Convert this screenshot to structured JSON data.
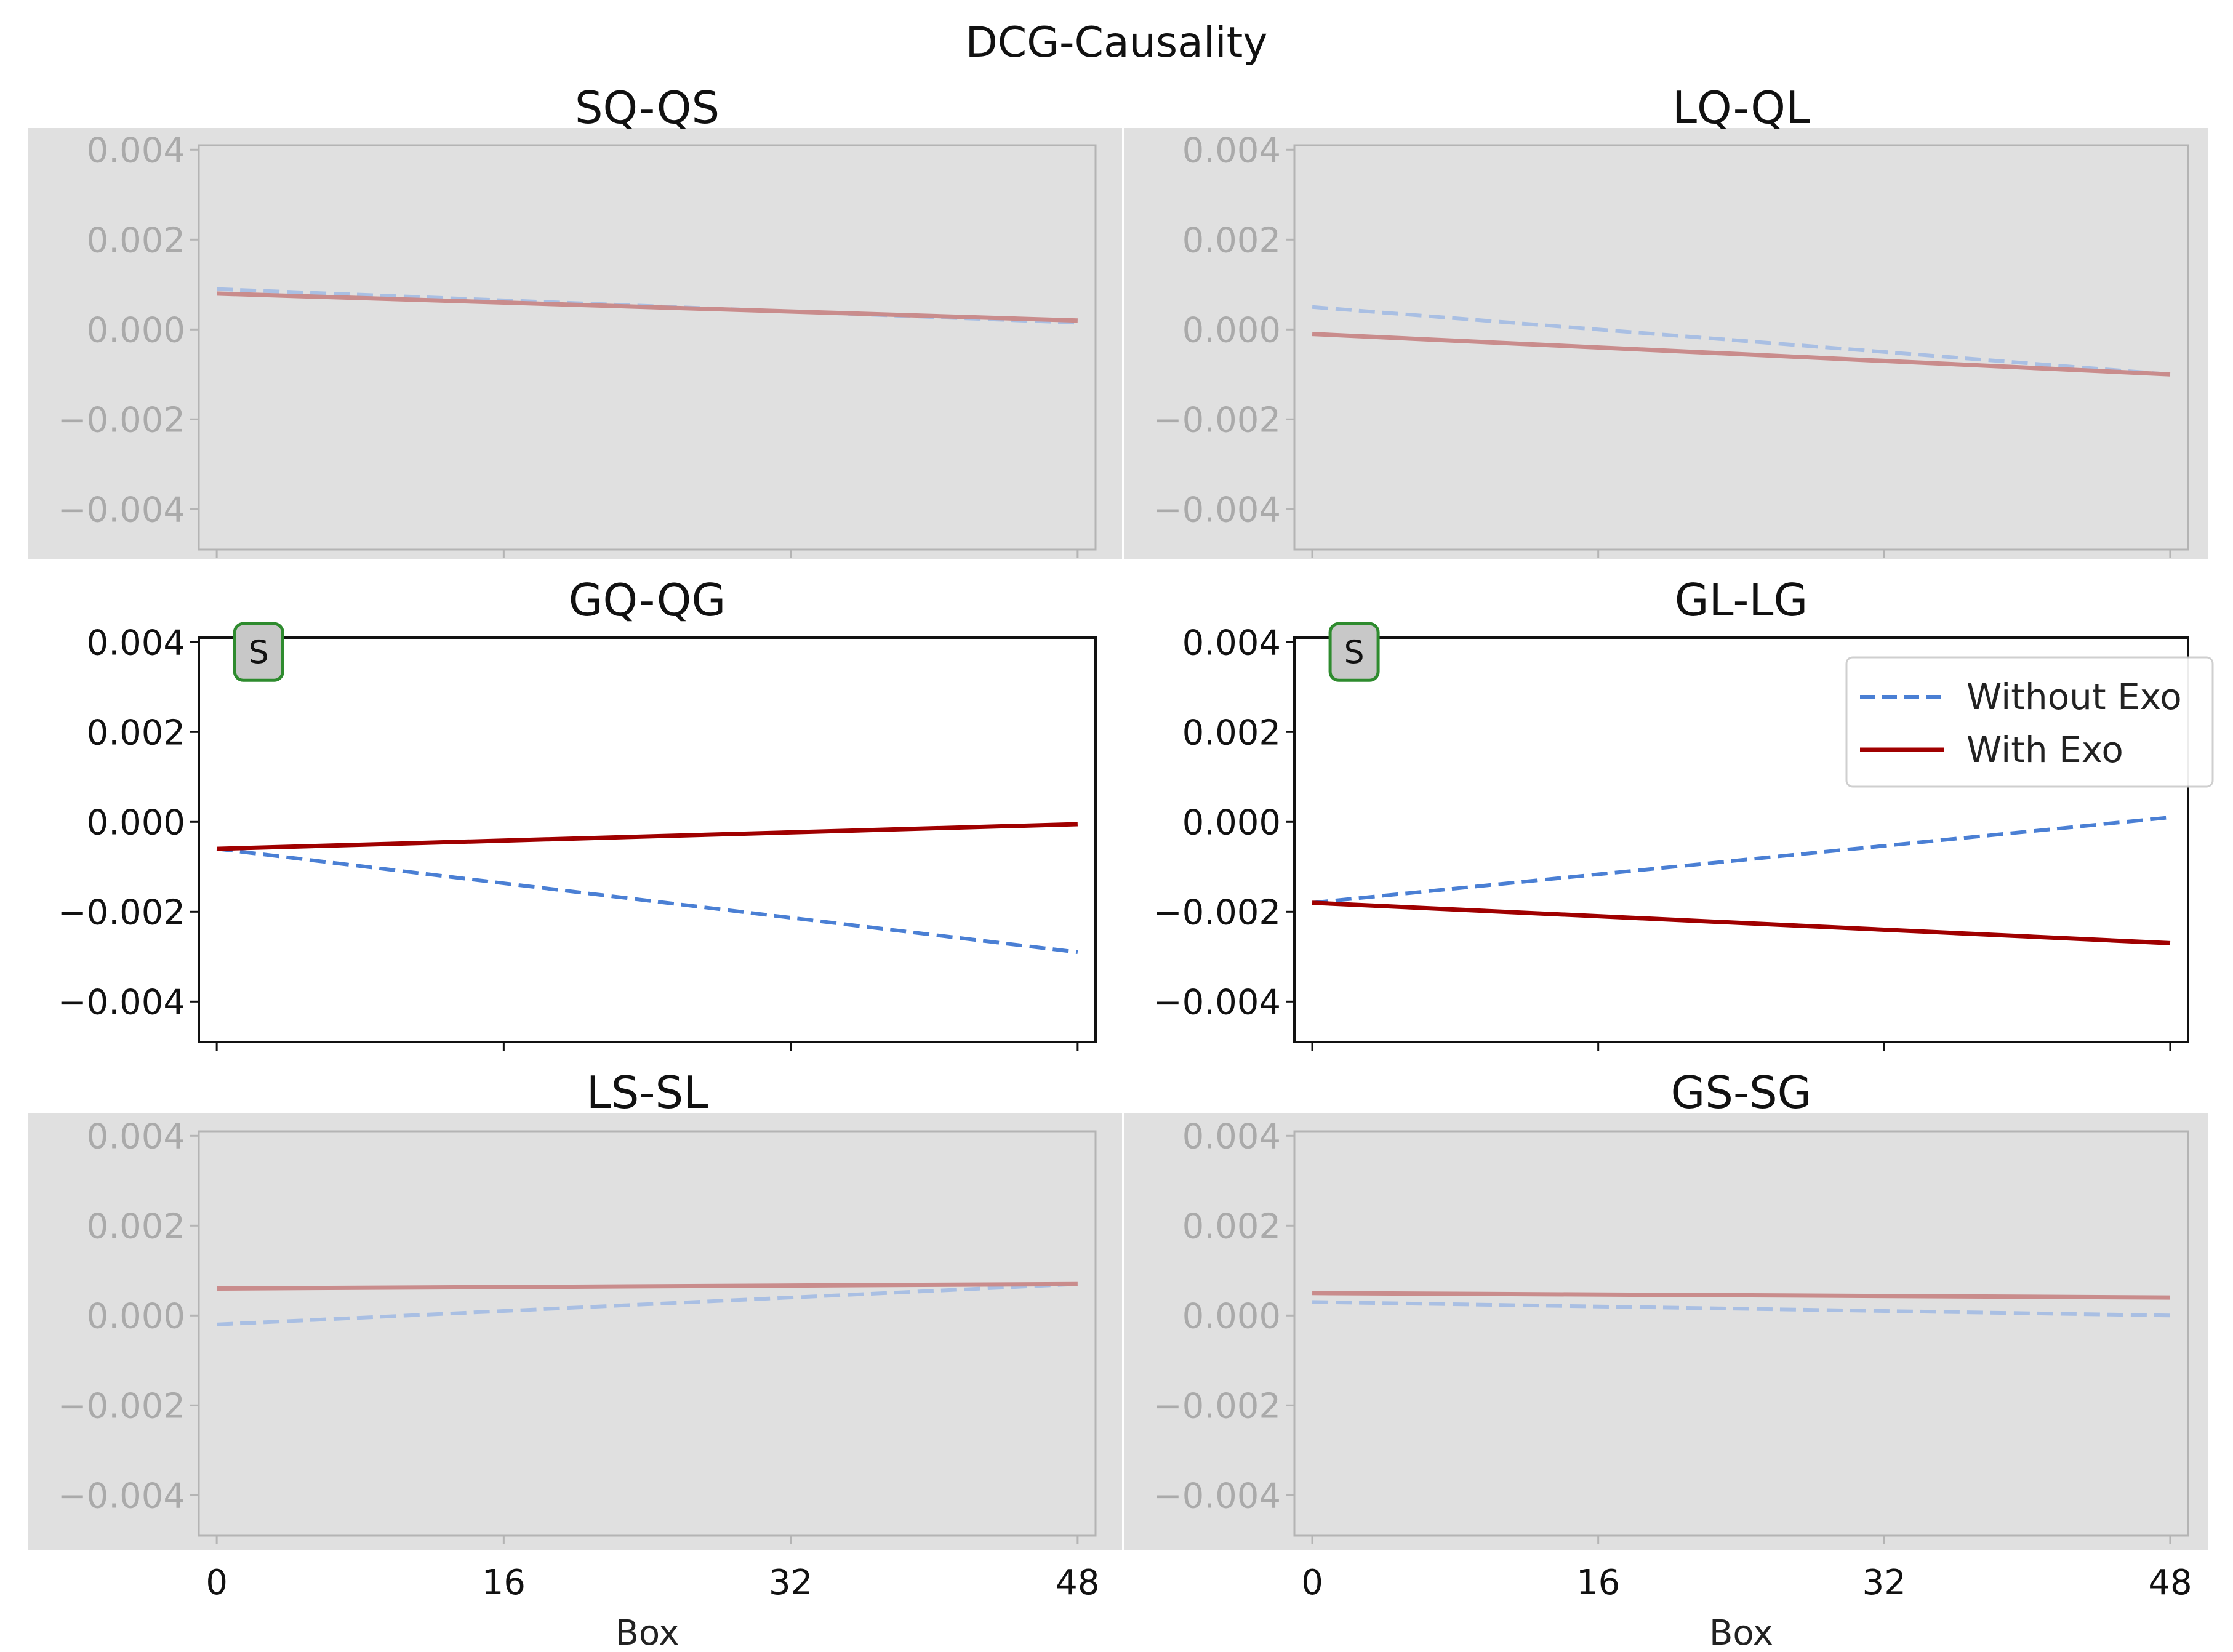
{
  "chart_data": {
    "type": "line",
    "title": "DCG-Causality",
    "xlabel": "Box",
    "x": [
      0,
      48
    ],
    "xticks": [
      0,
      16,
      32,
      48
    ],
    "xtick_labels": [
      "0",
      "16",
      "32",
      "48"
    ],
    "yticks": [
      0.004,
      0.002,
      0.0,
      -0.002,
      -0.004
    ],
    "ytick_labels": [
      "0.004",
      "0.002",
      "0.000",
      "−0.002",
      "−0.004"
    ],
    "ylim": [
      -0.0049,
      0.0041
    ],
    "xlim": [
      -1,
      49
    ],
    "legend": {
      "location": "upper right of GL-LG panel",
      "entries": [
        "Without Exo",
        "With Exo"
      ]
    },
    "colors": {
      "without_exo": "#4a7fd4",
      "with_exo": "#a00000",
      "significant_badge_fill": "#c8c8c8",
      "significant_badge_border": "#2e8b2e",
      "faded_background": "#e0e0e0"
    },
    "panels": [
      {
        "title": "SQ-QS",
        "significant": false,
        "series": [
          {
            "name": "Without Exo",
            "values": [
              0.0009,
              0.00015
            ]
          },
          {
            "name": "With Exo",
            "values": [
              0.0008,
              0.0002
            ]
          }
        ]
      },
      {
        "title": "LQ-QL",
        "significant": false,
        "series": [
          {
            "name": "Without Exo",
            "values": [
              0.0005,
              -0.001
            ]
          },
          {
            "name": "With Exo",
            "values": [
              -0.0001,
              -0.001
            ]
          }
        ]
      },
      {
        "title": "GQ-QG",
        "significant": true,
        "badge": "S",
        "series": [
          {
            "name": "Without Exo",
            "values": [
              -0.0006,
              -0.0029
            ]
          },
          {
            "name": "With Exo",
            "values": [
              -0.0006,
              -5e-05
            ]
          }
        ]
      },
      {
        "title": "GL-LG",
        "significant": true,
        "badge": "S",
        "series": [
          {
            "name": "Without Exo",
            "values": [
              -0.0018,
              0.0001
            ]
          },
          {
            "name": "With Exo",
            "values": [
              -0.0018,
              -0.0027
            ]
          }
        ]
      },
      {
        "title": "LS-SL",
        "significant": false,
        "series": [
          {
            "name": "Without Exo",
            "values": [
              -0.0002,
              0.0007
            ]
          },
          {
            "name": "With Exo",
            "values": [
              0.0006,
              0.0007
            ]
          }
        ]
      },
      {
        "title": "GS-SG",
        "significant": false,
        "series": [
          {
            "name": "Without Exo",
            "values": [
              0.0003,
              0.0
            ]
          },
          {
            "name": "With Exo",
            "values": [
              0.0005,
              0.0004
            ]
          }
        ]
      }
    ]
  }
}
